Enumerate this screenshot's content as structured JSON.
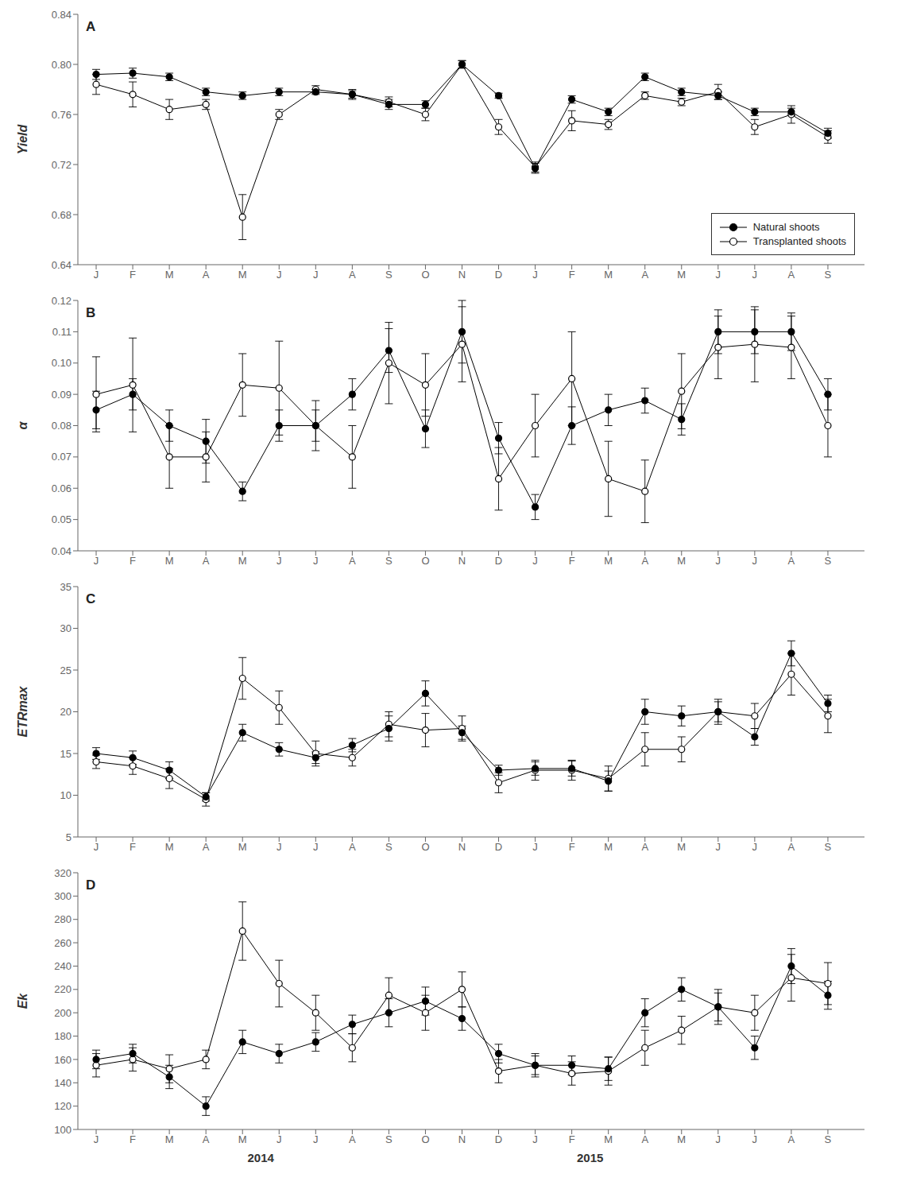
{
  "chart_data": [
    {
      "type": "line",
      "title": "A",
      "ylabel": "Yield",
      "categories": [
        "J",
        "F",
        "M",
        "A",
        "M",
        "J",
        "J",
        "A",
        "S",
        "O",
        "N",
        "D",
        "J",
        "F",
        "M",
        "A",
        "M",
        "J",
        "J",
        "A",
        "S"
      ],
      "ylim": [
        0.64,
        0.84
      ],
      "yticks": [
        0.64,
        0.68,
        0.72,
        0.76,
        {
          "value": 0.8,
          "label": "0.80"
        },
        0.84
      ],
      "grid": false,
      "legend": "lower right",
      "series": [
        {
          "name": "Natural shoots",
          "color": "black",
          "marker": "circle",
          "values": [
            0.792,
            0.793,
            0.79,
            0.778,
            0.775,
            0.778,
            0.778,
            0.776,
            0.768,
            0.768,
            0.8,
            0.775,
            0.717,
            0.772,
            0.762,
            0.79,
            0.778,
            0.775,
            0.762,
            0.762,
            0.745
          ],
          "errors": [
            0.004,
            0.004,
            0.003,
            0.003,
            0.003,
            0.003,
            0.002,
            0.004,
            0.004,
            0.003,
            0.003,
            0.002,
            0.004,
            0.003,
            0.003,
            0.003,
            0.003,
            0.003,
            0.003,
            0.003,
            0.004
          ]
        },
        {
          "name": "Transplanted shoots",
          "color": "black",
          "marker": "open_circle",
          "values": [
            0.784,
            0.776,
            0.764,
            0.768,
            0.678,
            0.76,
            0.78,
            0.776,
            0.77,
            0.76,
            0.8,
            0.75,
            0.718,
            0.755,
            0.752,
            0.775,
            0.77,
            0.778,
            0.75,
            0.76,
            0.742
          ],
          "errors": [
            0.008,
            0.01,
            0.008,
            0.004,
            0.018,
            0.004,
            0.003,
            0.003,
            0.004,
            0.005,
            0.003,
            0.006,
            0.004,
            0.008,
            0.004,
            0.003,
            0.003,
            0.006,
            0.006,
            0.007,
            0.005
          ]
        }
      ]
    },
    {
      "type": "line",
      "title": "B",
      "ylabel": "α",
      "categories": [
        "J",
        "F",
        "M",
        "A",
        "M",
        "J",
        "J",
        "A",
        "S",
        "O",
        "N",
        "D",
        "J",
        "F",
        "M",
        "A",
        "M",
        "J",
        "J",
        "A",
        "S"
      ],
      "ylim": [
        0.04,
        0.12
      ],
      "yticks": [
        0.04,
        0.05,
        0.06,
        0.07,
        0.08,
        0.09,
        {
          "value": 0.1,
          "label": "0.10"
        },
        0.11,
        0.12
      ],
      "grid": false,
      "series": [
        {
          "color": "black",
          "marker": "circle",
          "values": [
            0.085,
            0.09,
            0.08,
            0.075,
            0.059,
            0.08,
            0.08,
            0.09,
            0.104,
            0.079,
            0.11,
            0.076,
            0.054,
            0.08,
            0.085,
            0.088,
            0.082,
            0.11,
            0.11,
            0.11,
            0.09
          ],
          "errors": [
            0.006,
            0.005,
            0.005,
            0.007,
            0.003,
            0.005,
            0.005,
            0.005,
            0.007,
            0.006,
            0.01,
            0.005,
            0.004,
            0.006,
            0.005,
            0.004,
            0.005,
            0.007,
            0.007,
            0.006,
            0.005
          ]
        },
        {
          "color": "black",
          "marker": "open_circle",
          "values": [
            0.09,
            0.093,
            0.07,
            0.07,
            0.093,
            0.092,
            0.08,
            0.07,
            0.1,
            0.093,
            0.106,
            0.063,
            0.08,
            0.095,
            0.063,
            0.059,
            0.091,
            0.105,
            0.106,
            0.105,
            0.08
          ],
          "errors": [
            0.012,
            0.015,
            0.01,
            0.008,
            0.01,
            0.015,
            0.008,
            0.01,
            0.013,
            0.01,
            0.012,
            0.01,
            0.01,
            0.015,
            0.012,
            0.01,
            0.012,
            0.01,
            0.012,
            0.01,
            0.01
          ]
        }
      ]
    },
    {
      "type": "line",
      "title": "C",
      "ylabel": "ETRmax",
      "categories": [
        "J",
        "F",
        "M",
        "A",
        "M",
        "J",
        "J",
        "A",
        "S",
        "O",
        "N",
        "D",
        "J",
        "F",
        "M",
        "A",
        "M",
        "J",
        "J",
        "A",
        "S"
      ],
      "ylim": [
        5,
        35
      ],
      "yticks": [
        5,
        10,
        15,
        20,
        25,
        30,
        35
      ],
      "grid": false,
      "series": [
        {
          "color": "black",
          "marker": "circle",
          "values": [
            15.0,
            14.5,
            13.0,
            9.8,
            17.5,
            15.5,
            14.5,
            16.0,
            18.0,
            22.2,
            17.5,
            13.0,
            13.2,
            13.2,
            11.7,
            20.0,
            19.5,
            20.0,
            17.0,
            27.0,
            21.0
          ],
          "errors": [
            0.7,
            0.8,
            1.0,
            0.5,
            1.0,
            0.8,
            0.7,
            0.8,
            1.5,
            1.5,
            0.8,
            0.6,
            0.8,
            0.9,
            1.2,
            1.5,
            1.2,
            1.2,
            1.0,
            1.5,
            1.0
          ]
        },
        {
          "color": "black",
          "marker": "open_circle",
          "values": [
            14.0,
            13.5,
            12.0,
            9.5,
            24.0,
            20.5,
            15.0,
            14.5,
            18.5,
            17.8,
            18.0,
            11.5,
            13.0,
            13.0,
            12.0,
            15.5,
            15.5,
            20.0,
            19.5,
            24.5,
            19.5
          ],
          "errors": [
            0.8,
            1.0,
            1.2,
            0.8,
            2.5,
            2.0,
            1.5,
            1.0,
            1.5,
            2.0,
            1.5,
            1.2,
            1.2,
            1.2,
            1.5,
            2.0,
            1.5,
            1.5,
            1.5,
            2.5,
            2.0
          ]
        }
      ]
    },
    {
      "type": "line",
      "title": "D",
      "ylabel": "Ek",
      "categories": [
        "J",
        "F",
        "M",
        "A",
        "M",
        "J",
        "J",
        "A",
        "S",
        "O",
        "N",
        "D",
        "J",
        "F",
        "M",
        "A",
        "M",
        "J",
        "J",
        "A",
        "S"
      ],
      "ylim": [
        100,
        320
      ],
      "yticks": [
        100,
        120,
        140,
        160,
        180,
        200,
        220,
        240,
        260,
        280,
        300,
        320
      ],
      "grid": false,
      "annotations": [
        {
          "text": "2014",
          "x": 4.5
        },
        {
          "text": "2015",
          "x": 13.5
        }
      ],
      "series": [
        {
          "color": "black",
          "marker": "circle",
          "values": [
            160,
            165,
            145,
            120,
            175,
            165,
            175,
            190,
            200,
            210,
            195,
            165,
            155,
            155,
            152,
            200,
            220,
            205,
            170,
            240,
            215
          ],
          "errors": [
            8,
            8,
            10,
            8,
            10,
            8,
            8,
            8,
            12,
            12,
            10,
            8,
            8,
            8,
            10,
            12,
            10,
            12,
            10,
            15,
            12
          ]
        },
        {
          "color": "black",
          "marker": "open_circle",
          "values": [
            155,
            160,
            152,
            160,
            270,
            225,
            200,
            170,
            215,
            200,
            220,
            150,
            155,
            148,
            150,
            170,
            185,
            205,
            200,
            230,
            225
          ],
          "errors": [
            10,
            10,
            12,
            8,
            25,
            20,
            15,
            12,
            15,
            15,
            15,
            10,
            10,
            10,
            12,
            15,
            12,
            15,
            15,
            20,
            18
          ]
        }
      ]
    }
  ]
}
